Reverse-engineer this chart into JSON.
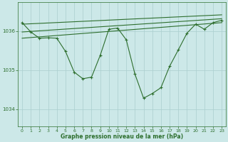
{
  "bg_color": "#cce8e8",
  "line_color": "#2d6e2d",
  "grid_color": "#aacece",
  "xlabel": "Graphe pression niveau de la mer (hPa)",
  "xlabel_color": "#2d6e2d",
  "ylabel_color": "#2d6e2d",
  "xlim": [
    -0.5,
    23.5
  ],
  "ylim": [
    1033.55,
    1036.75
  ],
  "yticks": [
    1034.0,
    1035.0,
    1036.0
  ],
  "xticks": [
    0,
    1,
    2,
    3,
    4,
    5,
    6,
    7,
    8,
    9,
    10,
    11,
    12,
    13,
    14,
    15,
    16,
    17,
    18,
    19,
    20,
    21,
    22,
    23
  ],
  "main_line": [
    [
      0,
      1036.22
    ],
    [
      1,
      1035.98
    ],
    [
      2,
      1035.82
    ],
    [
      3,
      1035.83
    ],
    [
      4,
      1035.82
    ],
    [
      5,
      1035.48
    ],
    [
      6,
      1034.95
    ],
    [
      7,
      1034.78
    ],
    [
      8,
      1034.82
    ],
    [
      9,
      1035.38
    ],
    [
      10,
      1036.05
    ],
    [
      11,
      1036.08
    ],
    [
      12,
      1035.78
    ],
    [
      13,
      1034.9
    ],
    [
      14,
      1034.28
    ],
    [
      15,
      1034.4
    ],
    [
      16,
      1034.55
    ],
    [
      17,
      1035.1
    ],
    [
      18,
      1035.52
    ],
    [
      19,
      1035.95
    ],
    [
      20,
      1036.18
    ],
    [
      21,
      1036.05
    ],
    [
      22,
      1036.22
    ],
    [
      23,
      1036.28
    ]
  ],
  "trend_line1": [
    [
      0,
      1036.18
    ],
    [
      23,
      1036.42
    ]
  ],
  "trend_line2": [
    [
      0,
      1035.98
    ],
    [
      23,
      1036.32
    ]
  ],
  "trend_line3": [
    [
      0,
      1035.82
    ],
    [
      23,
      1036.22
    ]
  ]
}
